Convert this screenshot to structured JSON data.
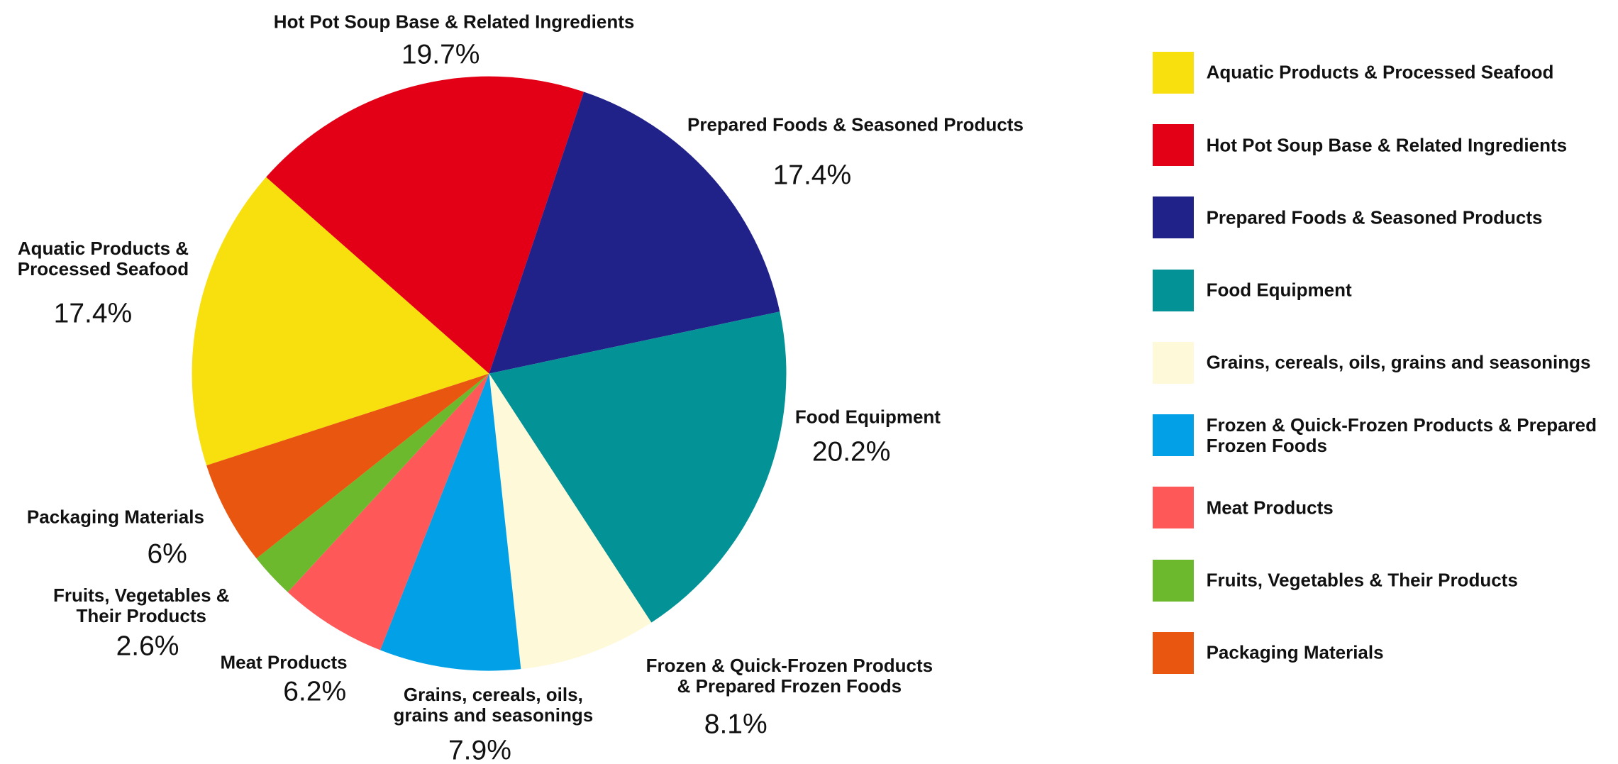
{
  "chart_data": {
    "type": "pie",
    "categories": [
      "Aquatic Products & Processed Seafood",
      "Hot Pot Soup Base & Related Ingredients",
      "Prepared Foods & Seasoned Products",
      "Food Equipment",
      "Grains, cereals, oils, grains and seasonings",
      "Frozen & Quick-Frozen Products & Prepared Frozen Foods",
      "Meat Products",
      "Fruits, Vegetables & Their Products",
      "Packaging Materials"
    ],
    "values": [
      17.4,
      19.7,
      17.4,
      20.2,
      7.9,
      8.1,
      6.2,
      2.6,
      6
    ],
    "value_labels": [
      "17.4%",
      "19.7%",
      "17.4%",
      "20.2%",
      "7.9%",
      "8.1%",
      "6.2%",
      "2.6%",
      "6%"
    ],
    "colors": [
      "#f8e00e",
      "#e30016",
      "#21218a",
      "#039296",
      "#fef9d8",
      "#02a0e6",
      "#fe5858",
      "#6cb92e",
      "#e8560f"
    ],
    "legend": "right"
  }
}
